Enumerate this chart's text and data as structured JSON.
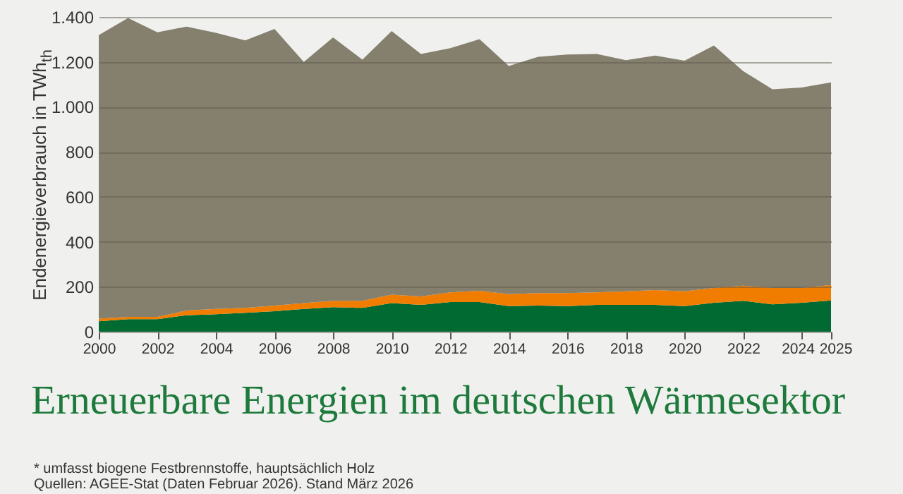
{
  "chart_data": {
    "type": "area",
    "stacked": true,
    "title": "Erneuerbare Energien im deutschen Wärmesektor",
    "ylabel": "Endenergieverbrauch in TWh$_{th}$",
    "x": [
      2000,
      2001,
      2002,
      2003,
      2004,
      2005,
      2006,
      2007,
      2008,
      2009,
      2010,
      2011,
      2012,
      2013,
      2014,
      2015,
      2016,
      2017,
      2018,
      2019,
      2020,
      2021,
      2022,
      2023,
      2024,
      2025
    ],
    "xlim": [
      2000,
      2025
    ],
    "xticks": [
      2000,
      2002,
      2004,
      2006,
      2008,
      2010,
      2012,
      2014,
      2016,
      2018,
      2020,
      2022,
      2024,
      2025
    ],
    "ylim": [
      0,
      1400
    ],
    "yticks": [
      0,
      200,
      400,
      600,
      800,
      {
        "value": 1000,
        "label": "1.000"
      },
      {
        "value": 1200,
        "label": "1.200"
      },
      {
        "value": 1400,
        "label": "1.400"
      }
    ],
    "grid": "y",
    "series": [
      {
        "color": "#006a32",
        "values": [
          46,
          56,
          56,
          73,
          78,
          84,
          91,
          101,
          109,
          106,
          127,
          119,
          132,
          132,
          114,
          116,
          114,
          119,
          119,
          119,
          114,
          129,
          137,
          122,
          129,
          139
        ]
      },
      {
        "color": "#f07d00",
        "values": [
          12,
          10,
          10,
          21,
          23,
          22,
          25,
          26,
          28,
          31,
          38,
          38,
          43,
          50,
          53,
          56,
          58,
          56,
          61,
          66,
          66,
          66,
          68,
          73,
          66,
          69
        ]
      },
      {
        "color": "#857f6e",
        "values": [
          1261,
          1329,
          1266,
          1263,
          1228,
          1190,
          1231,
          1073,
          1172,
          1073,
          1172,
          1078,
          1086,
          1119,
          1015,
          1051,
          1061,
          1060,
          1028,
          1043,
          1025,
          1078,
          954,
          883,
          891,
          901
        ]
      }
    ],
    "annotations": [
      "* umfasst biogene Festbrennstoffe, hauptsächlich Holz",
      "Quellen: AGEE-Stat (Daten Februar 2026). Stand März 2026"
    ]
  }
}
